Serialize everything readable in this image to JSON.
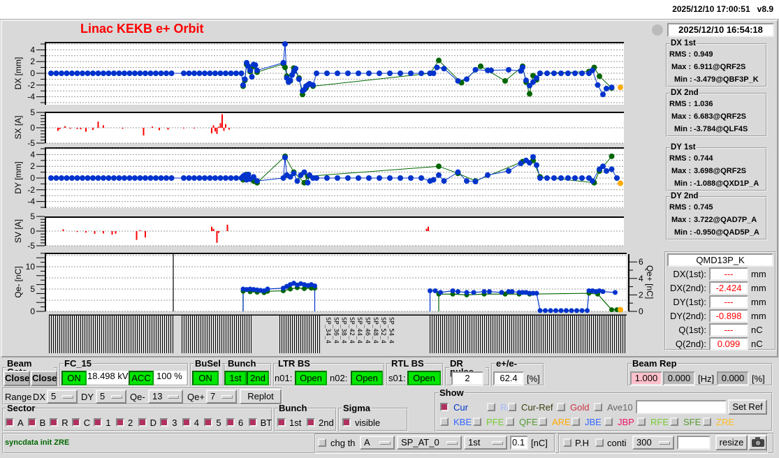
{
  "topbar": {
    "clock": "2025/12/10 17:00:51",
    "version": "v8.9"
  },
  "title": "Linac KEKB e+ Orbit",
  "timestamp": "2025/12/10 16:54:18",
  "stats": [
    {
      "name": "DX 1st",
      "rms_label": "RMS :",
      "rms": "0.949",
      "max_label": "Max :",
      "max": "6.911@QRF2S",
      "min_label": "Min :",
      "min": "-3.479@QBF3P_K"
    },
    {
      "name": "DX 2nd",
      "rms_label": "RMS :",
      "rms": "1.036",
      "max_label": "Max :",
      "max": "6.683@QRF2S",
      "min_label": "Min :",
      "min": "-3.784@QLF4S"
    },
    {
      "name": "DY 1st",
      "rms_label": "RMS :",
      "rms": "0.744",
      "max_label": "Max :",
      "max": "3.698@QRF2S",
      "min_label": "Min :",
      "min": "-1.088@QXD1P_A"
    },
    {
      "name": "DY 2nd",
      "rms_label": "RMS :",
      "rms": "0.745",
      "max_label": "Max :",
      "max": "3.722@QAD7P_A",
      "min_label": "Min :",
      "min": "-0.950@QAD5P_A"
    }
  ],
  "monitor": {
    "name": "QMD13P_K",
    "rows": [
      {
        "label": "DX(1st):",
        "value": "---",
        "unit": "mm"
      },
      {
        "label": "DX(2nd):",
        "value": "-2.424",
        "unit": "mm"
      },
      {
        "label": "DY(1st):",
        "value": "---",
        "unit": "mm"
      },
      {
        "label": "DY(2nd):",
        "value": "-0.898",
        "unit": "mm"
      },
      {
        "label": "Q(1st):",
        "value": "---",
        "unit": "nC"
      },
      {
        "label": "Q(2nd):",
        "value": "0.099",
        "unit": "nC"
      }
    ]
  },
  "colors": {
    "second": "#0033cc",
    "first": "#006600",
    "selected": "#ffaa00",
    "steer": "#ff0000",
    "title": "#ff0000",
    "on": "#00e600"
  },
  "chart_data": [
    {
      "type": "scatter",
      "ylabel": "DX [mm]",
      "ylim": [
        -5,
        5
      ],
      "yticks": [
        "4",
        "2",
        "0",
        "-2",
        "-4"
      ],
      "grid": true,
      "series": [
        {
          "x": [
            2,
            5,
            8,
            11,
            14,
            17,
            20,
            23,
            26,
            29,
            32,
            35,
            38,
            41,
            44,
            47,
            50,
            53,
            56,
            59,
            62,
            65,
            68,
            71,
            78,
            81,
            84,
            87,
            90,
            93,
            96,
            99,
            102,
            105,
            108,
            111,
            112,
            113,
            114,
            115,
            116,
            117,
            118,
            119,
            120,
            135,
            136,
            137,
            138,
            139,
            140,
            141,
            142,
            144,
            146,
            147,
            148,
            149,
            150,
            152,
            154,
            160,
            166,
            172,
            178,
            184,
            190,
            196,
            202,
            208,
            214,
            219,
            221,
            223,
            227,
            235,
            240,
            245,
            252,
            254,
            264,
            271,
            272,
            274,
            276,
            278,
            280,
            282,
            286,
            290,
            294,
            298,
            302,
            306,
            310,
            312,
            315,
            318,
            320,
            323
          ],
          "y": [
            0,
            0,
            0,
            0,
            0,
            0,
            0,
            0,
            0,
            0,
            0,
            0,
            0,
            0,
            0,
            0,
            0,
            0,
            0,
            0,
            0,
            0,
            0,
            0,
            0,
            0,
            0,
            0,
            0,
            0,
            0,
            0,
            0,
            0,
            0,
            0,
            -2,
            -1,
            1.8,
            1.2,
            0.5,
            -0.6,
            1.5,
            1.4,
            0.5,
            1.8,
            5,
            -0.8,
            -1.5,
            -1.2,
            -0.3,
            0.3,
            0.8,
            -1,
            -3,
            -2.8,
            -2.2,
            -2,
            -1.8,
            -2,
            0,
            0,
            0,
            0,
            0,
            0,
            0,
            0,
            0,
            0,
            0,
            0,
            0,
            1,
            0.8,
            -1.3,
            -1,
            0.6,
            0.5,
            0.5,
            0.6,
            0.4,
            1,
            -1.2,
            -2.1,
            -1.5,
            -0.8,
            0,
            0,
            0,
            0,
            0,
            0,
            0,
            0,
            0.5,
            -2,
            -3.6,
            -2.6,
            -2.4
          ]
        },
        {
          "x": [
            112,
            113,
            114,
            116,
            118,
            120,
            135,
            136,
            137,
            139,
            141,
            144,
            146,
            148,
            150,
            152,
            219,
            224,
            237,
            248,
            262,
            272,
            274,
            276,
            278,
            280,
            282,
            310,
            313,
            316,
            323
          ],
          "y": [
            -2.2,
            -1.2,
            1.5,
            0.3,
            1.2,
            0.2,
            1.6,
            1,
            -0.5,
            -1.3,
            0.9,
            -0.8,
            -3.6,
            -2.5,
            -1.8,
            -2.2,
            0,
            2.2,
            -1.6,
            1.2,
            -1.3,
            1.2,
            -1.5,
            -3.5,
            -0.4,
            -1.1,
            0,
            0.3,
            1,
            -0.5,
            -2.5
          ]
        }
      ],
      "selected": {
        "x": 328,
        "y": -2.4
      }
    },
    {
      "type": "bar",
      "ylabel": "SX [A]",
      "ylim": [
        -5,
        5
      ],
      "yticks": [
        "5",
        "0",
        "-5"
      ],
      "x": [
        6,
        7,
        10,
        13,
        17,
        19,
        22,
        26,
        29,
        32,
        43,
        55,
        60,
        64,
        69,
        78,
        84,
        94,
        95,
        96,
        97,
        98,
        99,
        100,
        101,
        102,
        104
      ],
      "values": [
        -1,
        -0.5,
        0.5,
        -0.3,
        -0.4,
        -0.5,
        -1.3,
        -0.7,
        2,
        0.8,
        -0.3,
        -2.5,
        0.4,
        -0.8,
        -0.6,
        -0.2,
        -0.2,
        -1.8,
        0.8,
        -1.2,
        -2,
        0.3,
        1.5,
        4.4,
        -1,
        1.2,
        -0.6
      ]
    },
    {
      "type": "scatter",
      "ylabel": "DY [mm]",
      "ylim": [
        -5,
        5
      ],
      "yticks": [
        "4",
        "2",
        "0",
        "-2",
        "-4"
      ],
      "grid": true,
      "series": [
        {
          "x": [
            2,
            5,
            8,
            11,
            14,
            17,
            20,
            23,
            26,
            29,
            32,
            35,
            38,
            41,
            44,
            47,
            50,
            53,
            56,
            59,
            62,
            65,
            68,
            71,
            78,
            81,
            84,
            87,
            90,
            93,
            96,
            99,
            102,
            105,
            108,
            111,
            112,
            113,
            114,
            115,
            116,
            118,
            120,
            135,
            136,
            137,
            139,
            141,
            143,
            145,
            147,
            149,
            150,
            152,
            154,
            160,
            166,
            172,
            178,
            184,
            190,
            196,
            202,
            208,
            214,
            219,
            221,
            224,
            227,
            235,
            240,
            245,
            252,
            264,
            271,
            274,
            276,
            278,
            280,
            282,
            286,
            290,
            294,
            298,
            302,
            306,
            310,
            312,
            316,
            318,
            320,
            323,
            326
          ],
          "y": [
            0,
            0,
            0,
            0,
            0,
            0,
            0,
            0,
            0,
            0,
            0,
            0,
            0,
            0,
            0,
            0,
            0,
            0,
            0,
            0,
            0,
            0,
            0,
            0,
            0,
            0,
            0,
            0,
            0,
            0,
            0,
            0,
            0,
            0,
            0,
            0,
            0.3,
            0.5,
            -0.3,
            0.6,
            -0.2,
            0.2,
            -0.5,
            0,
            3.5,
            0.5,
            0.2,
            0.8,
            -0.5,
            0.5,
            1,
            -0.8,
            0.5,
            0,
            0,
            0,
            0,
            0,
            0,
            0,
            0,
            0,
            0,
            0,
            0,
            -0.5,
            -0.3,
            0.5,
            -0.5,
            1,
            -0.5,
            -0.6,
            0.5,
            1.2,
            2.5,
            3,
            2.6,
            3.6,
            2.2,
            0,
            0,
            0,
            0,
            0,
            0,
            0,
            0,
            -0.5,
            1.5,
            2,
            1.2,
            1.5,
            0
          ]
        },
        {
          "x": [
            112,
            114,
            118,
            120,
            136,
            141,
            147,
            149,
            224,
            235,
            245,
            272,
            278,
            282,
            313,
            316,
            323
          ],
          "y": [
            -0.3,
            0.6,
            -0.5,
            -0.8,
            3.7,
            1,
            -0.8,
            0.3,
            2,
            0.8,
            -0.5,
            2.8,
            3,
            0.2,
            -0.8,
            1.2,
            3.7
          ]
        }
      ],
      "selected": {
        "x": 328,
        "y": -0.9
      }
    },
    {
      "type": "bar",
      "ylabel": "SV [A]",
      "ylim": [
        -5,
        5
      ],
      "yticks": [
        "5",
        "0",
        "-5"
      ],
      "x": [
        9,
        17,
        22,
        27,
        32,
        37,
        39,
        51,
        53,
        56,
        94,
        95,
        97,
        98,
        103,
        217,
        218
      ],
      "values": [
        0.6,
        -0.3,
        -0.5,
        -0.9,
        -0.8,
        -1.2,
        -0.9,
        -3,
        0.3,
        -2.2,
        1.5,
        0.8,
        -4,
        -0.6,
        2.2,
        0.8,
        1.5
      ]
    },
    {
      "type": "line",
      "ylabel": "Qe- [nC]",
      "ylabel_right": "Qe+ [nC]",
      "ylim": [
        0,
        13
      ],
      "ylim_right": [
        0,
        6.5
      ],
      "yticks": [
        "10",
        "5",
        "0"
      ],
      "yticks_right": [
        "6",
        "4",
        "2",
        "0"
      ],
      "grid": true,
      "marker_x": 72,
      "electron": [
        {
          "x": [
            112,
            114,
            116,
            118,
            120,
            122,
            124,
            126,
            135,
            137,
            139,
            141,
            143,
            145,
            147,
            149,
            151,
            153
          ],
          "y": [
            5,
            4.9,
            5,
            4.9,
            4.8,
            4.7,
            4.6,
            5,
            5.2,
            5.6,
            6,
            6.3,
            5.9,
            6.2,
            6,
            5.8,
            6,
            5.7
          ]
        },
        {
          "x": [
            112,
            116,
            120,
            124,
            126,
            135,
            139,
            143,
            147,
            151,
            153
          ],
          "y": [
            4.5,
            4.4,
            4.3,
            4.2,
            4.5,
            4.6,
            5,
            5.3,
            5.1,
            5.2,
            5.2
          ]
        }
      ],
      "positron": [
        {
          "x": [
            219,
            222,
            225,
            232,
            235,
            240,
            244,
            250,
            253,
            260,
            264,
            266,
            270,
            272,
            274,
            276,
            278,
            280,
            282,
            285,
            288,
            291,
            294,
            297,
            300,
            303,
            306,
            309,
            310,
            312,
            314,
            316,
            318,
            325
          ],
          "y": [
            2.5,
            2.5,
            2.3,
            2.5,
            2.4,
            2.3,
            2.3,
            2.4,
            2.4,
            2.3,
            2.4,
            2.4,
            2.3,
            2.3,
            2.3,
            2.2,
            2.2,
            2.2,
            0.1,
            0.1,
            0.1,
            0.1,
            0.1,
            0.1,
            0.1,
            0.1,
            0.1,
            0.1,
            2.5,
            2.5,
            2.4,
            2.5,
            2.4,
            2.3
          ]
        },
        {
          "x": [
            224,
            232,
            240,
            250,
            262,
            270,
            276,
            310,
            315,
            323,
            326
          ],
          "y": [
            2.1,
            2.1,
            2,
            2.1,
            2.1,
            2.1,
            2.1,
            2.2,
            2.1,
            0.2,
            0.2
          ]
        }
      ],
      "selected": {
        "x": 328,
        "y": 0.2
      }
    }
  ],
  "xaxis": {
    "readable_labels": [
      "SP_34_4",
      "SP_36_4",
      "SP_38_4",
      "SP_42_4",
      "SP_44_4",
      "SP_46_4",
      "SP_48_4",
      "SP_52_4",
      "SP_54_4"
    ]
  },
  "controls": {
    "beam_gate": {
      "title": "Beam Gate",
      "b1": "Close",
      "b2": "Close"
    },
    "fc15": {
      "title": "FC_15",
      "on": "ON",
      "kv": "18.498 kV",
      "acc": "ACC",
      "pct": "100 %"
    },
    "busel": {
      "title": "BuSel",
      "on": "ON"
    },
    "bunch": {
      "title": "Bunch",
      "b1": "1st",
      "b2": "2nd"
    },
    "ltr": {
      "title": "LTR BS",
      "n01": "n01:",
      "n01v": "Open",
      "n02": "n02:",
      "n02v": "Open"
    },
    "rtl": {
      "title": "RTL BS",
      "s01": "s01:",
      "s01v": "Open"
    },
    "dr": {
      "title": "DR pulse",
      "value": "2"
    },
    "ep": {
      "title": "e+/e-",
      "value": "62.4",
      "unit": "[%]"
    },
    "rep": {
      "title": "Beam Rep",
      "v1": "1.000",
      "v2": "0.000",
      "hz": "[Hz]",
      "v3": "0.000",
      "pct": "[%]"
    },
    "range": {
      "label": "Range",
      "dx": "DX",
      "dxv": "5",
      "dy": "DY",
      "dyv": "5",
      "qem": "Qe-",
      "qemv": "13",
      "qep": "Qe+",
      "qepv": "7",
      "replot": "Replot"
    },
    "sector": {
      "title": "Sector",
      "items": [
        "A",
        "B",
        "R",
        "C",
        "1",
        "2",
        "D",
        "3",
        "4",
        "5",
        "6",
        "BT"
      ]
    },
    "bunch2": {
      "title": "Bunch",
      "items": [
        "1st",
        "2nd"
      ]
    },
    "sigma": {
      "title": "Sigma",
      "item": "visible"
    },
    "show": {
      "title": "Show",
      "row1": [
        {
          "label": "Cur",
          "color": "#0033cc",
          "on": true
        },
        {
          "label": "Ref",
          "color": "#a0b8ff",
          "on": false
        },
        {
          "label": "Cur-Ref",
          "color": "#3a3a10",
          "on": false
        },
        {
          "label": "Gold",
          "color": "#cc3344",
          "on": false
        },
        {
          "label": "Ave10",
          "color": "#666666",
          "on": false
        }
      ],
      "ref_input": "",
      "set_ref": "Set Ref",
      "row2": [
        {
          "label": "KBE",
          "color": "#3366ff"
        },
        {
          "label": "PFE",
          "color": "#77cc33"
        },
        {
          "label": "QFE",
          "color": "#559933"
        },
        {
          "label": "ARE",
          "color": "#ffaa00"
        },
        {
          "label": "JBE",
          "color": "#3366ff"
        },
        {
          "label": "JBP",
          "color": "#ee1166"
        },
        {
          "label": "RFE",
          "color": "#77cc33"
        },
        {
          "label": "SFE",
          "color": "#559933"
        },
        {
          "label": "ZRE",
          "color": "#ffbb22"
        }
      ]
    },
    "status": "syncdata init ZRE",
    "chg": {
      "label": "chg th",
      "sel": "A",
      "pos": "SP_AT_0",
      "bunch": "1st",
      "value": "0.1",
      "unit": "[nC]"
    },
    "ph": {
      "label": "P.H",
      "conti": "conti",
      "count": "300",
      "input": "",
      "resize": "resize"
    }
  }
}
